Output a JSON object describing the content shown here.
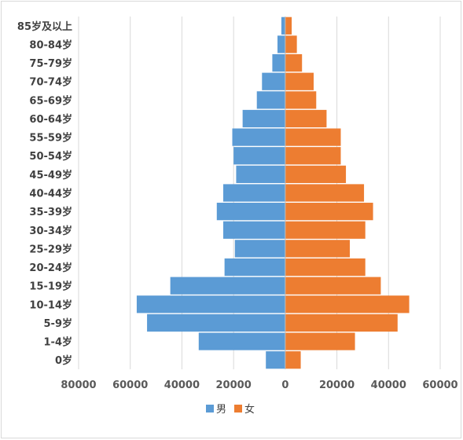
{
  "chart_data": {
    "type": "bar",
    "orientation": "horizontal",
    "categories": [
      "0岁",
      "1-4岁",
      "5-9岁",
      "10-14岁",
      "15-19岁",
      "20-24岁",
      "25-29岁",
      "30-34岁",
      "35-39岁",
      "40-44岁",
      "45-49岁",
      "50-54岁",
      "55-59岁",
      "60-64岁",
      "65-69岁",
      "70-74岁",
      "75-79岁",
      "80-84岁",
      "85岁及以上"
    ],
    "series": [
      {
        "name": "男",
        "color": "#5b9bd5",
        "values": [
          -7500,
          -33500,
          -53500,
          -57500,
          -44500,
          -23500,
          -19500,
          -24000,
          -26500,
          -24000,
          -19000,
          -20000,
          -20500,
          -16500,
          -11000,
          -9000,
          -5000,
          -3000,
          -1500
        ]
      },
      {
        "name": "女",
        "color": "#ed7d31",
        "values": [
          6000,
          27000,
          43500,
          48000,
          37000,
          31000,
          25000,
          31000,
          34000,
          30500,
          23500,
          21500,
          21500,
          16000,
          12000,
          11000,
          6500,
          4500,
          2500
        ]
      }
    ],
    "ticks": [
      -80000,
      -60000,
      -40000,
      -20000,
      0,
      20000,
      40000,
      60000
    ],
    "tick_labels": [
      "80000",
      "60000",
      "40000",
      "20000",
      "0",
      "20000",
      "40000",
      "60000"
    ],
    "xlim": [
      -80000,
      60000
    ],
    "grid": true,
    "legend": "bottom"
  }
}
